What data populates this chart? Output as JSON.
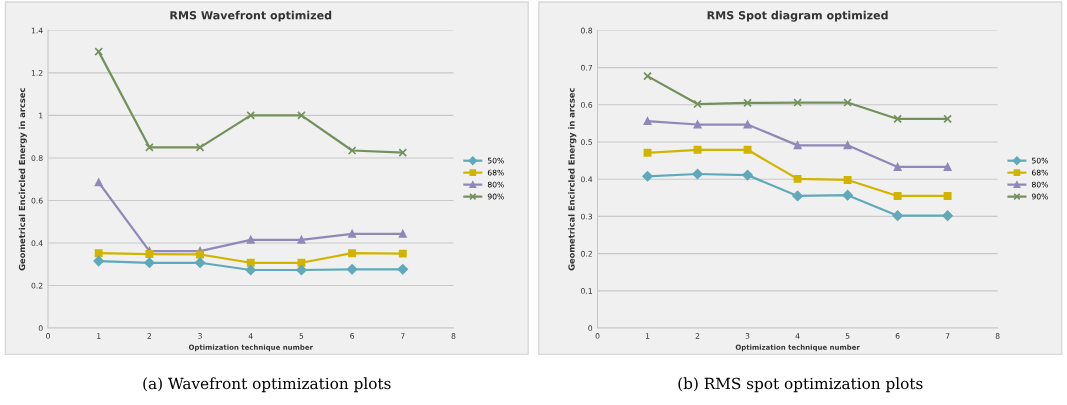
{
  "chart_data": [
    {
      "type": "line",
      "title": "RMS Wavefront optimized",
      "xlabel": "Optimization technique number",
      "ylabel": "Geometrical Encircled Energy in arcsec",
      "x": [
        1,
        2,
        3,
        4,
        5,
        6,
        7
      ],
      "xlim": [
        0,
        8
      ],
      "xticks": [
        0,
        1,
        2,
        3,
        4,
        5,
        6,
        7,
        8
      ],
      "ylim": [
        0,
        1.4
      ],
      "yticks": [
        0,
        0.2,
        0.4,
        0.6,
        0.8,
        {
          "value": 1,
          "label": "1"
        },
        1.2,
        1.4
      ],
      "grid": "y",
      "legend": "right",
      "line_style": "solid",
      "annotations": [
        "(a) Wavefront optimization plots"
      ],
      "series": [
        {
          "name": "50%",
          "color": "#5fa9ba",
          "marker": "diamond",
          "values": [
            0.315,
            0.307,
            0.307,
            0.273,
            0.273,
            0.276,
            0.276
          ]
        },
        {
          "name": "68%",
          "color": "#d1b400",
          "marker": "square",
          "values": [
            0.352,
            0.348,
            0.346,
            0.307,
            0.307,
            0.352,
            0.35
          ]
        },
        {
          "name": "80%",
          "color": "#9088b8",
          "marker": "triangle",
          "values": [
            0.685,
            0.362,
            0.362,
            0.415,
            0.415,
            0.443,
            0.443
          ]
        },
        {
          "name": "90%",
          "color": "#74905c",
          "marker": "cross",
          "values": [
            1.3,
            0.85,
            0.85,
            1.0,
            1.0,
            0.835,
            0.825
          ]
        }
      ]
    },
    {
      "type": "line",
      "title": "RMS Spot diagram optimized",
      "xlabel": "Optimization technique number",
      "ylabel": "Geometrical Encircled Energy in arcsec",
      "x": [
        1,
        2,
        3,
        4,
        5,
        6,
        7
      ],
      "xlim": [
        0,
        8
      ],
      "xticks": [
        0,
        1,
        2,
        3,
        4,
        5,
        6,
        7,
        8
      ],
      "ylim": [
        0,
        0.8
      ],
      "yticks": [
        0,
        0.1,
        0.2,
        0.3,
        0.4,
        0.5,
        0.6,
        0.7,
        0.8
      ],
      "grid": "y",
      "legend": "right",
      "line_style": "solid",
      "annotations": [
        "(b) RMS spot optimization plots"
      ],
      "series": [
        {
          "name": "50%",
          "color": "#5fa9ba",
          "marker": "diamond",
          "values": [
            0.408,
            0.414,
            0.411,
            0.355,
            0.357,
            0.302,
            0.302
          ]
        },
        {
          "name": "68%",
          "color": "#d1b400",
          "marker": "square",
          "values": [
            0.471,
            0.479,
            0.479,
            0.401,
            0.398,
            0.355,
            0.355
          ]
        },
        {
          "name": "80%",
          "color": "#9088b8",
          "marker": "triangle",
          "values": [
            0.556,
            0.547,
            0.547,
            0.491,
            0.491,
            0.433,
            0.433
          ]
        },
        {
          "name": "90%",
          "color": "#74905c",
          "marker": "cross",
          "values": [
            0.677,
            0.602,
            0.605,
            0.606,
            0.606,
            0.562,
            0.562
          ]
        }
      ]
    }
  ]
}
